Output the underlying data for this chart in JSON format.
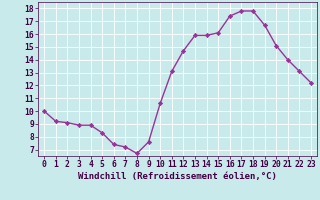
{
  "x": [
    0,
    1,
    2,
    3,
    4,
    5,
    6,
    7,
    8,
    9,
    10,
    11,
    12,
    13,
    14,
    15,
    16,
    17,
    18,
    19,
    20,
    21,
    22,
    23
  ],
  "y": [
    10,
    9.2,
    9.1,
    8.9,
    8.9,
    8.3,
    7.4,
    7.2,
    6.7,
    7.6,
    10.6,
    13.1,
    14.7,
    15.9,
    15.9,
    16.1,
    17.4,
    17.8,
    17.8,
    16.7,
    15.1,
    14.0,
    13.1,
    12.2
  ],
  "line_color": "#993399",
  "marker": "D",
  "markersize": 2.2,
  "linewidth": 1.0,
  "xlabel": "Windchill (Refroidissement éolien,°C)",
  "xlabel_fontsize": 6.5,
  "xlabel_color": "#440044",
  "bg_color": "#c8eaea",
  "grid_color": "#ffffff",
  "tick_color": "#440044",
  "ylim": [
    6.5,
    18.5
  ],
  "xlim": [
    -0.5,
    23.5
  ],
  "yticks": [
    7,
    8,
    9,
    10,
    11,
    12,
    13,
    14,
    15,
    16,
    17,
    18
  ],
  "xticks": [
    0,
    1,
    2,
    3,
    4,
    5,
    6,
    7,
    8,
    9,
    10,
    11,
    12,
    13,
    14,
    15,
    16,
    17,
    18,
    19,
    20,
    21,
    22,
    23
  ],
  "tick_fontsize": 5.8
}
